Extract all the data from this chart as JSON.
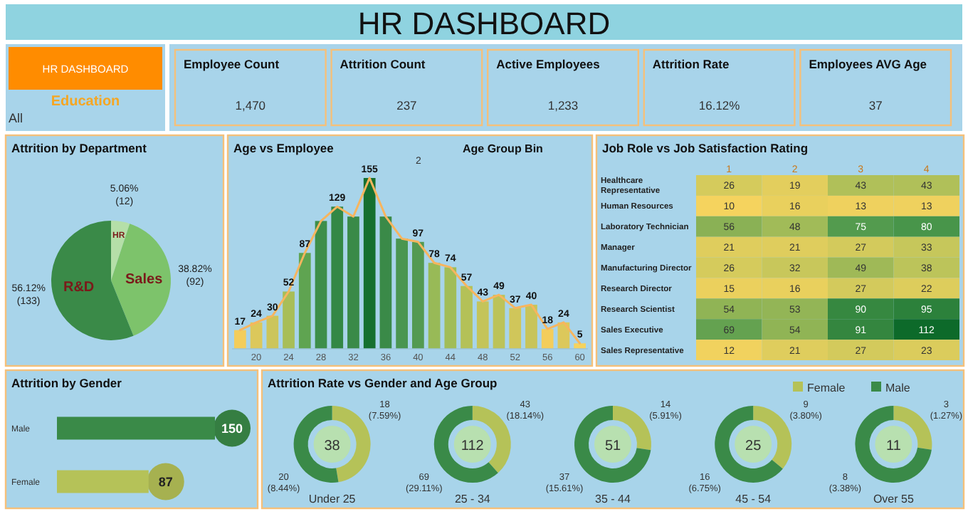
{
  "chart_data": [
    {
      "type": "other",
      "title": "HR DASHBOARD",
      "annotations": [
        "HR DASHBOARD",
        "Education",
        "All"
      ]
    },
    {
      "type": "other",
      "categories": [
        "Employee Count",
        "Attrition Count",
        "Active Employees",
        "Attrition Rate",
        "Employees AVG Age"
      ],
      "values": [
        1470,
        237,
        1233,
        16.12,
        37
      ],
      "value_labels": [
        "1,470",
        "237",
        "1,233",
        "16.12%",
        "37"
      ]
    },
    {
      "type": "pie",
      "title": "Attrition by Department",
      "categories": [
        "HR",
        "Sales",
        "R&D"
      ],
      "values": [
        12,
        92,
        133
      ],
      "colors": [
        "#b5dfa8",
        "#7dc36b",
        "#3a8a48"
      ],
      "value_labels": [
        "5.06% (12)",
        "38.82% (92)",
        "56.12% (133)"
      ]
    },
    {
      "type": "bar",
      "title": "Age vs Employee",
      "annotations": [
        "Age Group Bin",
        "2"
      ],
      "x": [
        18,
        20,
        22,
        24,
        26,
        28,
        30,
        32,
        34,
        36,
        38,
        40,
        42,
        44,
        46,
        48,
        50,
        52,
        54,
        56,
        58,
        60
      ],
      "xlim": [
        17,
        61
      ],
      "xticks": [
        20,
        24,
        28,
        32,
        36,
        40,
        44,
        48,
        52,
        56,
        60
      ],
      "tick_labels": "x",
      "series": [
        {
          "type": "bar",
          "values": [
            17,
            24,
            30,
            52,
            87,
            116,
            129,
            120,
            155,
            120,
            100,
            97,
            78,
            74,
            57,
            43,
            49,
            37,
            40,
            18,
            24,
            5
          ],
          "colors": [
            "#f3cd5b",
            "#dcc85b",
            "#ccc55b",
            "#a8be58",
            "#5fa451",
            "#3d8e4a",
            "#338845",
            "#3a8a48",
            "#16702f",
            "#3a8a48",
            "#4a9650",
            "#539a51",
            "#98ba57",
            "#a1bd58",
            "#b4c158",
            "#c4c45a",
            "#bcc359",
            "#d0c65a",
            "#c8c45a",
            "#f3cd5b",
            "#dcc85b",
            "#f5d35e"
          ],
          "value_labels": [
            "17",
            "24",
            "30",
            "52",
            "87",
            null,
            "129",
            null,
            "155",
            null,
            null,
            "97",
            "78",
            "74",
            "57",
            "43",
            "49",
            "37",
            "40",
            "18",
            "24",
            "5"
          ]
        },
        {
          "type": "line",
          "color": "#f7b55e",
          "values": [
            17,
            24,
            30,
            52,
            87,
            116,
            129,
            120,
            155,
            120,
            100,
            97,
            78,
            74,
            57,
            43,
            49,
            37,
            40,
            18,
            24,
            5
          ]
        }
      ]
    },
    {
      "type": "heatmap",
      "title": "Job Role vs Job Satisfaction Rating",
      "categories": [
        "1",
        "2",
        "3",
        "4"
      ],
      "y_categories": [
        "Healthcare Representative",
        "Human Resources",
        "Laboratory Technician",
        "Manager",
        "Manufacturing Director",
        "Research Director",
        "Research Scientist",
        "Sales Executive",
        "Sales Representative"
      ],
      "cells": [
        [
          26,
          19,
          43,
          43
        ],
        [
          10,
          16,
          13,
          13
        ],
        [
          56,
          48,
          75,
          80
        ],
        [
          21,
          21,
          27,
          33
        ],
        [
          26,
          32,
          49,
          38
        ],
        [
          15,
          16,
          27,
          22
        ],
        [
          54,
          53,
          90,
          95
        ],
        [
          69,
          54,
          91,
          112
        ],
        [
          12,
          21,
          27,
          23
        ]
      ],
      "data_labels": true
    },
    {
      "type": "bar",
      "orientation": "horizontal",
      "title": "Attrition by Gender",
      "categories": [
        "Male",
        "Female"
      ],
      "values": [
        150,
        87
      ],
      "colors": [
        "#3a8a48",
        "#b5c258"
      ],
      "data_labels": true
    },
    {
      "type": "donut",
      "title": "Attrition Rate vs Gender and Age Group",
      "categories": [
        "Female",
        "Male"
      ],
      "colors": [
        "#b5c258",
        "#3a8a48"
      ],
      "legend": "top right",
      "totals": [
        "38",
        "112",
        "51",
        "25",
        "11"
      ],
      "series": [
        {
          "name": "Under 25",
          "values": [
            18,
            20
          ],
          "value_labels": [
            "18 (7.59%)",
            "20 (8.44%)"
          ]
        },
        {
          "name": "25 - 34",
          "values": [
            43,
            69
          ],
          "value_labels": [
            "43 (18.14%)",
            "69 (29.11%)"
          ]
        },
        {
          "name": "35 - 44",
          "values": [
            14,
            37
          ],
          "value_labels": [
            "14 (5.91%)",
            "37 (15.61%)"
          ]
        },
        {
          "name": "45 - 54",
          "values": [
            9,
            16
          ],
          "value_labels": [
            "9 (3.80%)",
            "16 (6.75%)"
          ]
        },
        {
          "name": "Over 55",
          "values": [
            3,
            8
          ],
          "value_labels": [
            "3 (1.27%)",
            "8 (3.38%)"
          ]
        }
      ]
    }
  ]
}
